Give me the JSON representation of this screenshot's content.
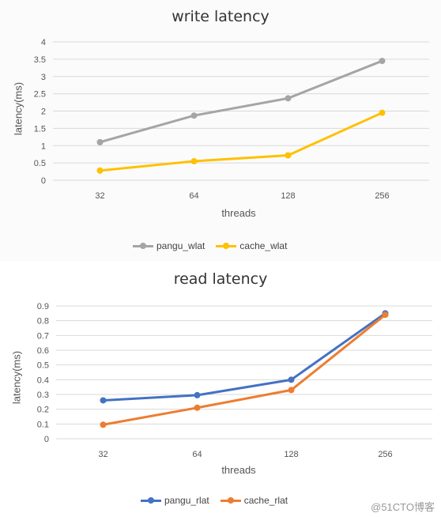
{
  "chart_data": [
    {
      "type": "line",
      "title": "write latency",
      "xlabel": "threads",
      "ylabel": "latency(ms)",
      "categories": [
        "32",
        "64",
        "128",
        "256"
      ],
      "ylim": [
        0,
        4
      ],
      "yticks": [
        "0",
        "0.5",
        "1",
        "1.5",
        "2",
        "2.5",
        "3",
        "3.5",
        "4"
      ],
      "grid": true,
      "legend": "bottom",
      "series": [
        {
          "name": "pangu_wlat",
          "color": "#a5a5a5",
          "values": [
            1.1,
            1.87,
            2.37,
            3.45
          ]
        },
        {
          "name": "cache_wlat",
          "color": "#ffc000",
          "values": [
            0.28,
            0.55,
            0.72,
            1.95
          ]
        }
      ]
    },
    {
      "type": "line",
      "title": "read latency",
      "xlabel": "threads",
      "ylabel": "latency(ms)",
      "categories": [
        "32",
        "64",
        "128",
        "256"
      ],
      "ylim": [
        0,
        0.9
      ],
      "yticks": [
        "0",
        "0.1",
        "0.2",
        "0.3",
        "0.4",
        "0.5",
        "0.6",
        "0.7",
        "0.8",
        "0.9"
      ],
      "grid": true,
      "legend": "bottom",
      "series": [
        {
          "name": "pangu_rlat",
          "color": "#4472c4",
          "values": [
            0.26,
            0.295,
            0.4,
            0.85
          ]
        },
        {
          "name": "cache_rlat",
          "color": "#ed7d31",
          "values": [
            0.095,
            0.21,
            0.33,
            0.84
          ]
        }
      ]
    }
  ],
  "watermark": "@51CTO博客"
}
